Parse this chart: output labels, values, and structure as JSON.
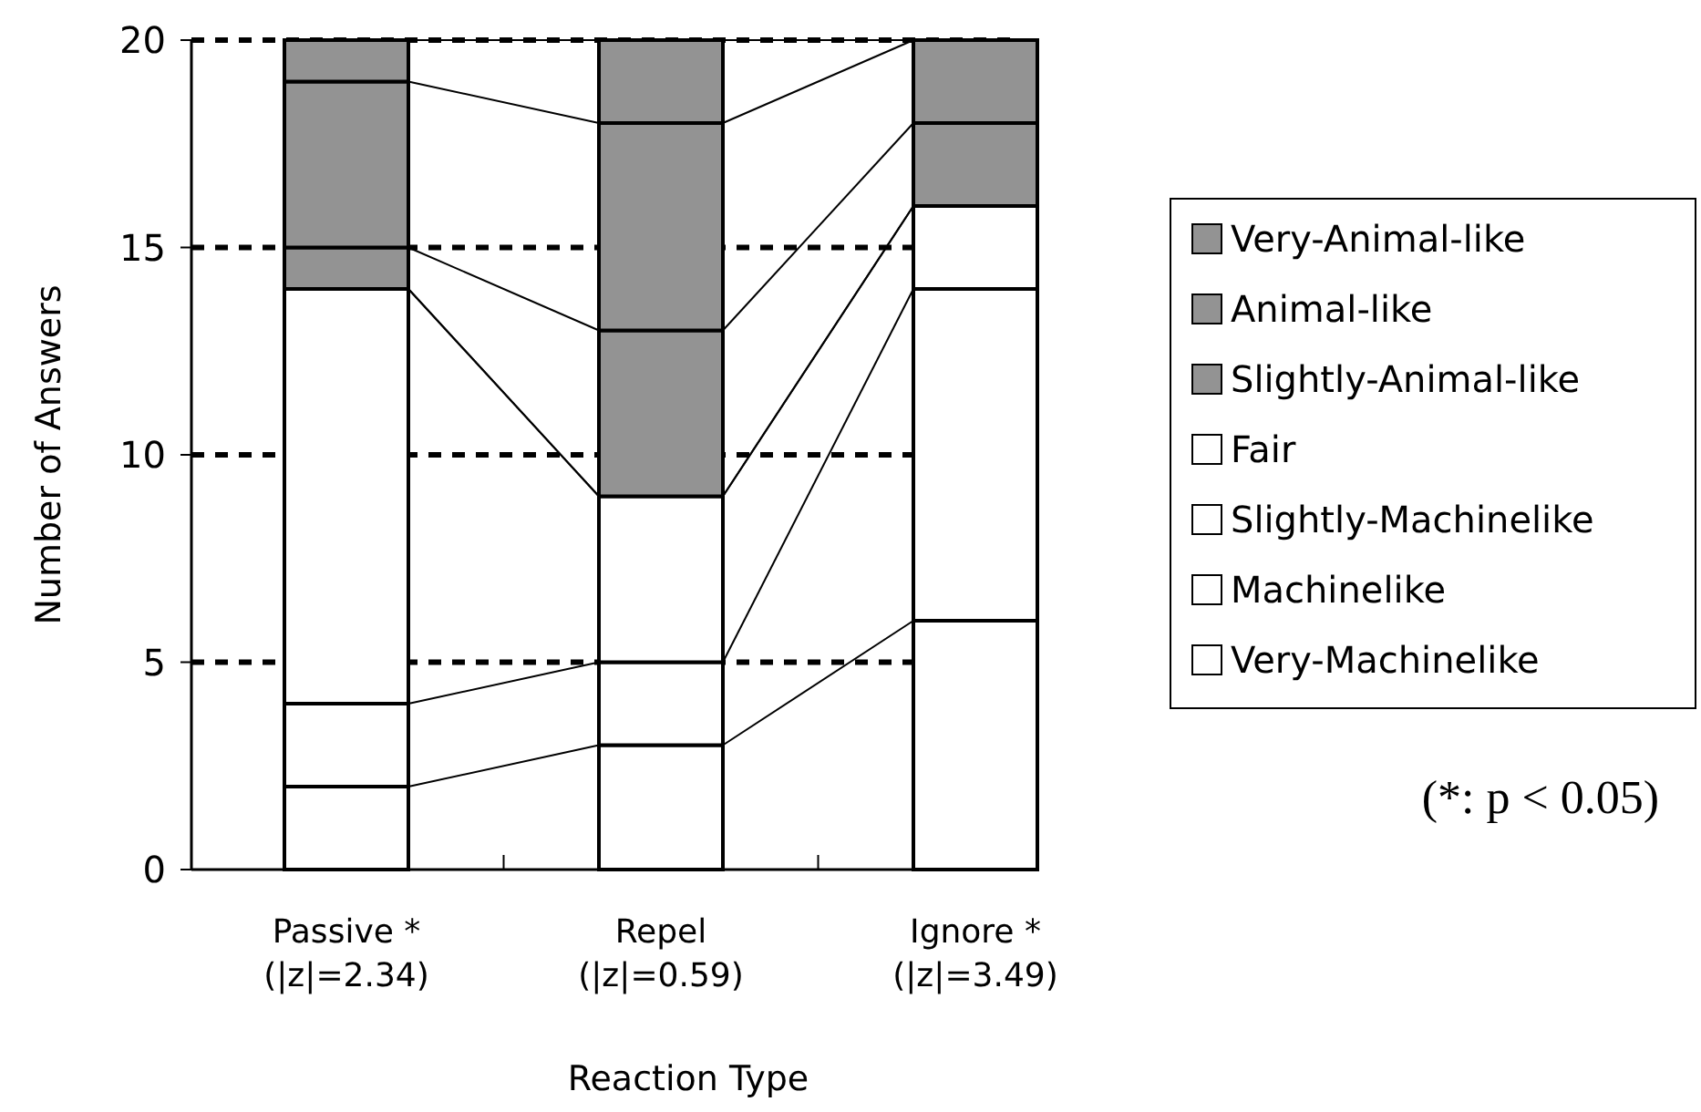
{
  "chart_data": {
    "type": "bar",
    "stacked": true,
    "xlabel": "Reaction Type",
    "ylabel": "Number of Answers",
    "categories": [
      "Passive *\n(|z|=2.34)",
      "Repel\n(|z|=0.59)",
      "Ignore *\n(|z|=3.49)"
    ],
    "series": [
      {
        "name": "Very-Machinelike",
        "color": "#ffffff",
        "values": [
          2,
          3,
          6
        ]
      },
      {
        "name": "Machinelike",
        "color": "#ffffff",
        "values": [
          2,
          2,
          8
        ]
      },
      {
        "name": "Slightly-Machinelike",
        "color": "#ffffff",
        "values": [
          10,
          4,
          2
        ]
      },
      {
        "name": "Fair",
        "color": "#ffffff",
        "values": [
          0,
          0,
          0
        ]
      },
      {
        "name": "Slightly-Animal-like",
        "color": "#939393",
        "values": [
          1,
          4,
          2
        ]
      },
      {
        "name": "Animal-like",
        "color": "#939393",
        "values": [
          4,
          5,
          2
        ]
      },
      {
        "name": "Very-Animal-like",
        "color": "#939393",
        "values": [
          1,
          2,
          0
        ]
      }
    ],
    "ylim": [
      0,
      20
    ],
    "yticks": [
      0,
      5,
      10,
      15,
      20
    ],
    "grid": "y",
    "legend": "right",
    "annotations": [
      "(*: p < 0.05)"
    ]
  }
}
